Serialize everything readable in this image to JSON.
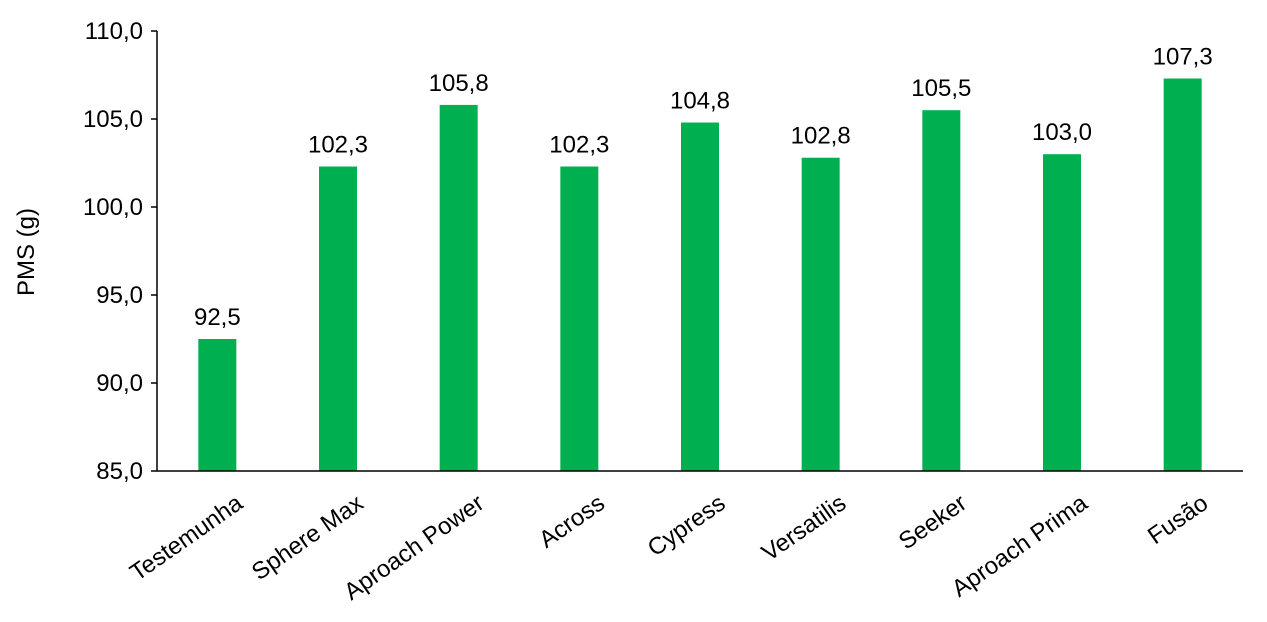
{
  "chart_data": {
    "type": "bar",
    "title": "",
    "ylabel": "PMS (g)",
    "xlabel": "",
    "categories": [
      "Testemunha",
      "Sphere Max",
      "Aproach Power",
      "Across",
      "Cypress",
      "Versatilis",
      "Seeker",
      "Aproach Prima",
      "Fusão"
    ],
    "values": [
      92.5,
      102.3,
      105.8,
      102.3,
      104.8,
      102.8,
      105.5,
      103.0,
      107.3
    ],
    "data_labels": [
      "92,5",
      "102,3",
      "105,8",
      "102,3",
      "104,8",
      "102,8",
      "105,5",
      "103,0",
      "107,3"
    ],
    "ylim": [
      85,
      110
    ],
    "yticks": [
      85,
      90,
      95,
      100,
      105,
      110
    ],
    "ytick_labels": [
      "85,0",
      "90,0",
      "95,0",
      "100,0",
      "105,0",
      "110,0"
    ],
    "grid": false,
    "legend": "none",
    "bar_color": "#00b050"
  }
}
